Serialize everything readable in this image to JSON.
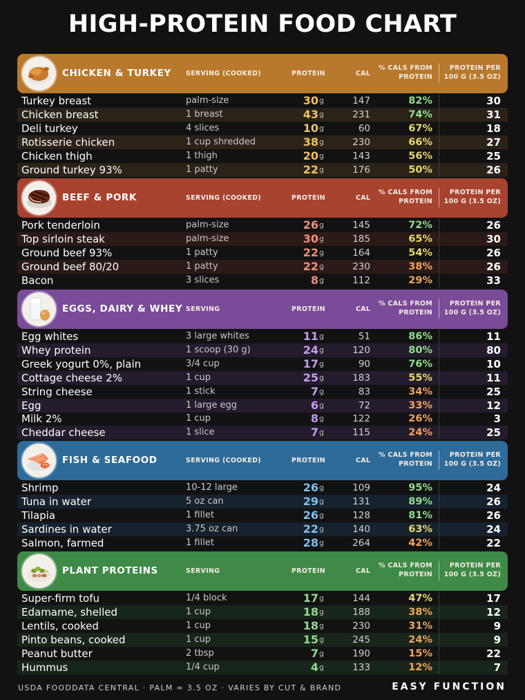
{
  "title": "HIGH-PROTEIN FOOD CHART",
  "colors": {
    "pct_high": "#8fe08a",
    "pct_mid": "#e8d86a",
    "pct_low": "#f4a35a"
  },
  "sections": [
    {
      "id": "chicken",
      "name": "CHICKEN & TURKEY",
      "icon": "roast-chicken-icon",
      "color": "#b8792c",
      "protein_color": "#f3c062",
      "row_tint": "#2b2318",
      "serving_header": "SERVING (COOKED)",
      "protein_header": "PROTEIN",
      "cal_header": "CAL",
      "pct_header": "% CALS FROM PROTEIN",
      "per100_header": "PROTEIN PER 100 G (3.5 OZ)",
      "rows": [
        {
          "name": "Turkey breast",
          "serving": "palm-size",
          "protein": "30",
          "unit": "g",
          "cal": "147",
          "pct": "82%",
          "level": "high",
          "per100": "30"
        },
        {
          "name": "Chicken breast",
          "serving": "1 breast",
          "protein": "43",
          "unit": "g",
          "cal": "231",
          "pct": "74%",
          "level": "high",
          "per100": "31"
        },
        {
          "name": "Deli turkey",
          "serving": "4 slices",
          "protein": "10",
          "unit": "g",
          "cal": "60",
          "pct": "67%",
          "level": "mid",
          "per100": "18"
        },
        {
          "name": "Rotisserie chicken",
          "serving": "1 cup shredded",
          "protein": "38",
          "unit": "g",
          "cal": "230",
          "pct": "66%",
          "level": "mid",
          "per100": "27"
        },
        {
          "name": "Chicken thigh",
          "serving": "1 thigh",
          "protein": "20",
          "unit": "g",
          "cal": "143",
          "pct": "56%",
          "level": "mid",
          "per100": "25"
        },
        {
          "name": "Ground turkey 93%",
          "serving": "1 patty",
          "protein": "22",
          "unit": "g",
          "cal": "176",
          "pct": "50%",
          "level": "mid",
          "per100": "26"
        }
      ]
    },
    {
      "id": "beef",
      "name": "BEEF & PORK",
      "icon": "steak-icon",
      "color": "#a8432f",
      "protein_color": "#f0907c",
      "row_tint": "#2b1a17",
      "serving_header": "SERVING (COOKED)",
      "protein_header": "PROTEIN",
      "cal_header": "CAL",
      "pct_header": "% CALS FROM PROTEIN",
      "per100_header": "PROTEIN PER 100 G (3.5 OZ)",
      "rows": [
        {
          "name": "Pork tenderloin",
          "serving": "palm-size",
          "protein": "26",
          "unit": "g",
          "cal": "145",
          "pct": "72%",
          "level": "high",
          "per100": "26"
        },
        {
          "name": "Top sirloin steak",
          "serving": "palm-size",
          "protein": "30",
          "unit": "g",
          "cal": "185",
          "pct": "65%",
          "level": "mid",
          "per100": "30"
        },
        {
          "name": "Ground beef 93%",
          "serving": "1 patty",
          "protein": "22",
          "unit": "g",
          "cal": "164",
          "pct": "54%",
          "level": "mid",
          "per100": "26"
        },
        {
          "name": "Ground beef 80/20",
          "serving": "1 patty",
          "protein": "22",
          "unit": "g",
          "cal": "230",
          "pct": "38%",
          "level": "low",
          "per100": "26"
        },
        {
          "name": "Bacon",
          "serving": "3 slices",
          "protein": "8",
          "unit": "g",
          "cal": "112",
          "pct": "29%",
          "level": "low",
          "per100": "33"
        }
      ]
    },
    {
      "id": "eggs",
      "name": "EGGS, DAIRY & WHEY",
      "icon": "milk-and-egg-icon",
      "color": "#7a4b98",
      "protein_color": "#c79bf0",
      "row_tint": "#241c2c",
      "serving_header": "SERVING",
      "protein_header": "PROTEIN",
      "cal_header": "CAL",
      "pct_header": "% CALS FROM PROTEIN",
      "per100_header": "PROTEIN PER 100 G (3.5 OZ)",
      "rows": [
        {
          "name": "Egg whites",
          "serving": "3 large whites",
          "protein": "11",
          "unit": "g",
          "cal": "51",
          "pct": "86%",
          "level": "high",
          "per100": "11"
        },
        {
          "name": "Whey protein",
          "serving": "1 scoop (30 g)",
          "protein": "24",
          "unit": "g",
          "cal": "120",
          "pct": "80%",
          "level": "high",
          "per100": "80"
        },
        {
          "name": "Greek yogurt 0%, plain",
          "serving": "3/4 cup",
          "protein": "17",
          "unit": "g",
          "cal": "90",
          "pct": "76%",
          "level": "high",
          "per100": "10"
        },
        {
          "name": "Cottage cheese 2%",
          "serving": "1 cup",
          "protein": "25",
          "unit": "g",
          "cal": "183",
          "pct": "55%",
          "level": "mid",
          "per100": "11"
        },
        {
          "name": "String cheese",
          "serving": "1 stick",
          "protein": "7",
          "unit": "g",
          "cal": "83",
          "pct": "34%",
          "level": "low",
          "per100": "25"
        },
        {
          "name": "Egg",
          "serving": "1 large egg",
          "protein": "6",
          "unit": "g",
          "cal": "72",
          "pct": "33%",
          "level": "low",
          "per100": "12"
        },
        {
          "name": "Milk 2%",
          "serving": "1 cup",
          "protein": "8",
          "unit": "g",
          "cal": "122",
          "pct": "26%",
          "level": "low",
          "per100": "3"
        },
        {
          "name": "Cheddar cheese",
          "serving": "1 slice",
          "protein": "7",
          "unit": "g",
          "cal": "115",
          "pct": "24%",
          "level": "low",
          "per100": "25"
        }
      ]
    },
    {
      "id": "fish",
      "name": "FISH & SEAFOOD",
      "icon": "salmon-and-shrimp-icon",
      "color": "#2e6b99",
      "protein_color": "#7cc0f2",
      "row_tint": "#16222d",
      "serving_header": "SERVING (COOKED)",
      "protein_header": "PROTEIN",
      "cal_header": "CAL",
      "pct_header": "% CALS FROM PROTEIN",
      "per100_header": "PROTEIN PER 100 G (3.5 OZ)",
      "rows": [
        {
          "name": "Shrimp",
          "serving": "10-12 large",
          "protein": "26",
          "unit": "g",
          "cal": "109",
          "pct": "95%",
          "level": "high",
          "per100": "24"
        },
        {
          "name": "Tuna in water",
          "serving": "5 oz can",
          "protein": "29",
          "unit": "g",
          "cal": "131",
          "pct": "89%",
          "level": "high",
          "per100": "26"
        },
        {
          "name": "Tilapia",
          "serving": "1 fillet",
          "protein": "26",
          "unit": "g",
          "cal": "128",
          "pct": "81%",
          "level": "high",
          "per100": "26"
        },
        {
          "name": "Sardines in water",
          "serving": "3.75 oz can",
          "protein": "22",
          "unit": "g",
          "cal": "140",
          "pct": "63%",
          "level": "mid",
          "per100": "24"
        },
        {
          "name": "Salmon, farmed",
          "serving": "1 fillet",
          "protein": "28",
          "unit": "g",
          "cal": "264",
          "pct": "42%",
          "level": "low",
          "per100": "22"
        }
      ]
    },
    {
      "id": "plant",
      "name": "PLANT PROTEINS",
      "icon": "beans-and-edamame-icon",
      "color": "#3f8a46",
      "protein_color": "#8fdc8a",
      "row_tint": "#18251a",
      "serving_header": "SERVING",
      "protein_header": "PROTEIN",
      "cal_header": "CAL",
      "pct_header": "% CALS FROM PROTEIN",
      "per100_header": "PROTEIN PER 100 G (3.5 OZ)",
      "rows": [
        {
          "name": "Super-firm tofu",
          "serving": "1/4 block",
          "protein": "17",
          "unit": "g",
          "cal": "144",
          "pct": "47%",
          "level": "mid",
          "per100": "17"
        },
        {
          "name": "Edamame, shelled",
          "serving": "1 cup",
          "protein": "18",
          "unit": "g",
          "cal": "188",
          "pct": "38%",
          "level": "low",
          "per100": "12"
        },
        {
          "name": "Lentils, cooked",
          "serving": "1 cup",
          "protein": "18",
          "unit": "g",
          "cal": "230",
          "pct": "31%",
          "level": "low",
          "per100": "9"
        },
        {
          "name": "Pinto beans, cooked",
          "serving": "1 cup",
          "protein": "15",
          "unit": "g",
          "cal": "245",
          "pct": "24%",
          "level": "low",
          "per100": "9"
        },
        {
          "name": "Peanut butter",
          "serving": "2 tbsp",
          "protein": "7",
          "unit": "g",
          "cal": "190",
          "pct": "15%",
          "level": "low",
          "per100": "22"
        },
        {
          "name": "Hummus",
          "serving": "1/4 cup",
          "protein": "4",
          "unit": "g",
          "cal": "133",
          "pct": "12%",
          "level": "low",
          "per100": "7"
        }
      ]
    }
  ],
  "footer": {
    "source": "USDA FOODDATA CENTRAL · PALM ≈ 3.5 OZ · VARIES BY CUT & BRAND",
    "brand": "EASY FUNCTION"
  }
}
